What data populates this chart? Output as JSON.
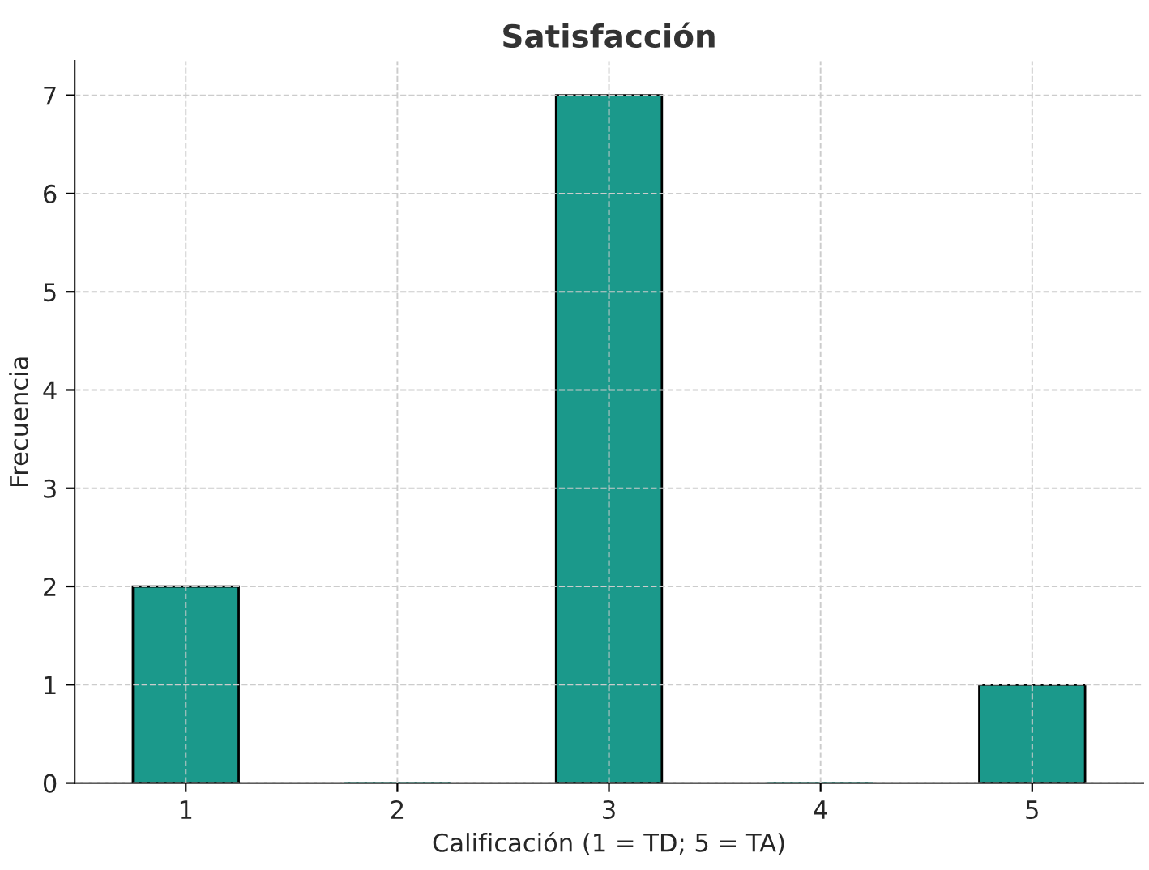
{
  "chart_data": {
    "type": "bar",
    "title": "Satisfacción",
    "xlabel": "Calificación (1 = TD; 5 = TA)",
    "ylabel": "Frecuencia",
    "categories": [
      "1",
      "2",
      "3",
      "4",
      "5"
    ],
    "values": [
      2,
      0,
      7,
      0,
      1
    ],
    "color": "#1b998b",
    "ylim": [
      0,
      7.35
    ],
    "yticks": [
      0,
      1,
      2,
      3,
      4,
      5,
      6,
      7
    ],
    "grid": true
  }
}
